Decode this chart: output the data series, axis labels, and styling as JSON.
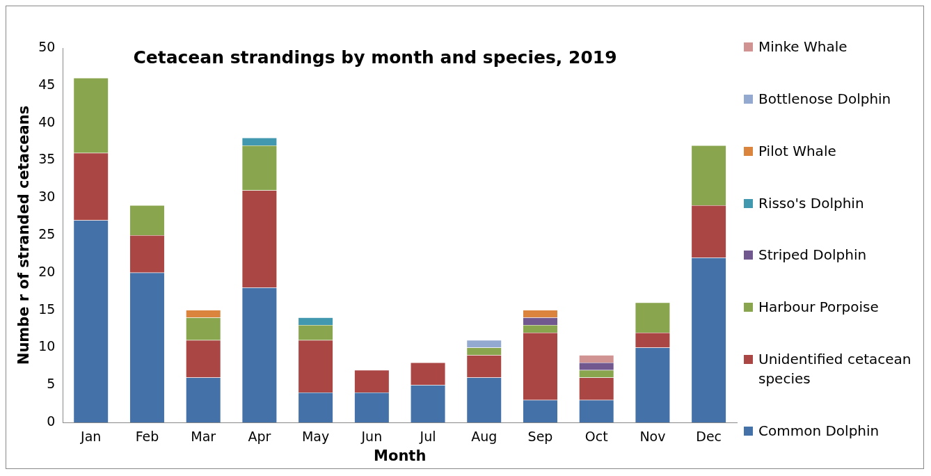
{
  "chart_data": {
    "type": "bar",
    "title": "Cetacean strandings by month and species, 2019",
    "xlabel": "Month",
    "ylabel": "Numbe r of stranded cetaceans",
    "categories": [
      "Jan",
      "Feb",
      "Mar",
      "Apr",
      "May",
      "Jun",
      "Jul",
      "Aug",
      "Sep",
      "Oct",
      "Nov",
      "Dec"
    ],
    "stacked": true,
    "ylim": [
      0,
      50
    ],
    "yticks": [
      0,
      5,
      10,
      15,
      20,
      25,
      30,
      35,
      40,
      45,
      50
    ],
    "grid": false,
    "legend": "right",
    "series": [
      {
        "name": "Common Dolphin",
        "color": "#4472a8",
        "values": [
          27,
          20,
          6,
          18,
          4,
          4,
          5,
          6,
          3,
          3,
          10,
          22
        ]
      },
      {
        "name": "Unidentified cetacean species",
        "color": "#aa4644",
        "values": [
          9,
          5,
          5,
          13,
          7,
          3,
          3,
          3,
          9,
          3,
          2,
          7
        ]
      },
      {
        "name": "Harbour Porpoise",
        "color": "#89a54e",
        "values": [
          10,
          4,
          3,
          6,
          2,
          null,
          null,
          1,
          1,
          1,
          4,
          8
        ]
      },
      {
        "name": "Striped Dolphin",
        "color": "#71588f",
        "values": [
          null,
          null,
          null,
          null,
          null,
          null,
          null,
          null,
          1,
          1,
          null,
          null
        ]
      },
      {
        "name": "Risso's Dolphin",
        "color": "#4198af",
        "values": [
          null,
          null,
          null,
          1,
          1,
          null,
          null,
          null,
          null,
          null,
          null,
          null
        ]
      },
      {
        "name": "Pilot Whale",
        "color": "#db843d",
        "values": [
          null,
          null,
          1,
          null,
          null,
          null,
          null,
          null,
          1,
          null,
          null,
          null
        ]
      },
      {
        "name": "Bottlenose Dolphin",
        "color": "#93a9cf",
        "values": [
          null,
          null,
          null,
          null,
          null,
          null,
          null,
          1,
          null,
          null,
          null,
          null
        ]
      },
      {
        "name": "Minke Whale",
        "color": "#d19392",
        "values": [
          null,
          null,
          null,
          null,
          null,
          null,
          null,
          null,
          null,
          1,
          null,
          null
        ]
      }
    ]
  }
}
